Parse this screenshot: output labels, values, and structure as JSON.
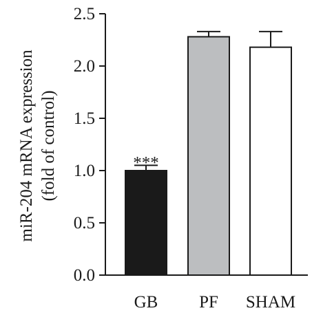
{
  "chart_data": {
    "type": "bar",
    "categories": [
      "GB",
      "PF",
      "SHAM"
    ],
    "values": [
      1.0,
      2.28,
      2.18
    ],
    "errors": [
      0.05,
      0.05,
      0.15
    ],
    "bar_colors": [
      "#1a1a1a",
      "#bcbec0",
      "#ffffff"
    ],
    "ylabel_lines": [
      "miR-204 mRNA expression",
      "(fold of control)"
    ],
    "ylim": [
      0,
      2.5
    ],
    "yticks": [
      "0.0",
      "0.5",
      "1.0",
      "1.5",
      "2.0",
      "2.5"
    ],
    "annotations": [
      {
        "category": "GB",
        "text": "***"
      }
    ],
    "grid": false
  }
}
